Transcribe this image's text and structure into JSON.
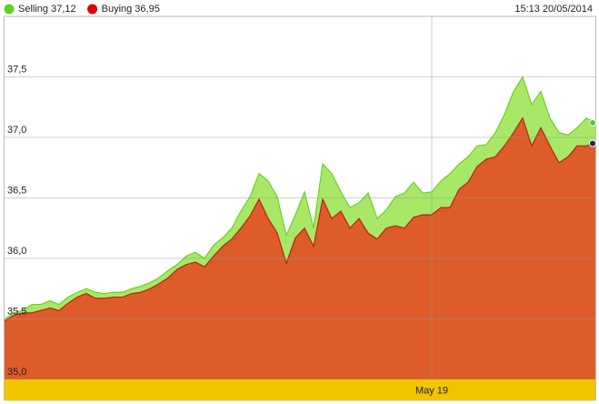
{
  "chart_data": {
    "type": "area",
    "timestamp": "15:13 20/05/2014",
    "categories": [
      null,
      null,
      null,
      null,
      null,
      null,
      null,
      null,
      null,
      null,
      null,
      null,
      null,
      null,
      null,
      null,
      null,
      null,
      null,
      null,
      null,
      null,
      null,
      null,
      null,
      null,
      null,
      null,
      null,
      null,
      null,
      null,
      null,
      null,
      null,
      null,
      null,
      null,
      null,
      null,
      null,
      null,
      null,
      null,
      null,
      null,
      null,
      "May 19",
      null,
      null,
      null,
      null,
      null,
      null,
      null,
      null,
      null,
      null,
      null,
      null,
      null,
      null,
      null,
      null,
      null,
      null
    ],
    "series": [
      {
        "name": "Selling 37,12",
        "color": "#a8e866",
        "line_color": "#6ccf2a",
        "legend_color": "#5ed21c",
        "values": [
          35.5,
          35.55,
          35.57,
          35.62,
          35.62,
          35.65,
          35.62,
          35.68,
          35.72,
          35.75,
          35.72,
          35.71,
          35.72,
          35.72,
          35.75,
          35.77,
          35.8,
          35.84,
          35.9,
          35.95,
          36.02,
          36.05,
          36.0,
          36.11,
          36.17,
          36.25,
          36.39,
          36.51,
          36.7,
          36.64,
          36.51,
          36.19,
          36.36,
          36.55,
          36.25,
          36.78,
          36.7,
          36.55,
          36.42,
          36.46,
          36.54,
          36.33,
          36.4,
          36.51,
          36.54,
          36.63,
          36.54,
          36.55,
          36.64,
          36.7,
          36.78,
          36.84,
          36.93,
          36.94,
          37.04,
          37.19,
          37.38,
          37.5,
          37.27,
          37.38,
          37.16,
          37.04,
          37.02,
          37.08,
          37.16,
          37.12
        ]
      },
      {
        "name": "Buying 36,95",
        "color": "#dd5c2a",
        "line_color": "#b02a10",
        "legend_color": "#e00000",
        "values": [
          35.48,
          35.53,
          35.55,
          35.55,
          35.57,
          35.59,
          35.57,
          35.63,
          35.68,
          35.71,
          35.67,
          35.67,
          35.68,
          35.68,
          35.71,
          35.72,
          35.75,
          35.79,
          35.84,
          35.91,
          35.95,
          35.97,
          35.93,
          36.02,
          36.1,
          36.16,
          36.25,
          36.35,
          36.49,
          36.33,
          36.21,
          35.96,
          36.17,
          36.25,
          36.1,
          36.49,
          36.33,
          36.39,
          36.25,
          36.33,
          36.21,
          36.16,
          36.25,
          36.27,
          36.25,
          36.34,
          36.36,
          36.36,
          36.42,
          36.42,
          36.57,
          36.63,
          36.76,
          36.82,
          36.84,
          36.93,
          37.04,
          37.16,
          36.93,
          37.08,
          36.93,
          36.79,
          36.84,
          36.93,
          36.93,
          36.95
        ]
      }
    ],
    "ylim": [
      35,
      38
    ],
    "yticks": [
      {
        "value": 35,
        "label": "35,0"
      },
      {
        "value": 35.5,
        "label": "35,5"
      },
      {
        "value": 36,
        "label": "36,0"
      },
      {
        "value": 36.5,
        "label": "36,5"
      },
      {
        "value": 37,
        "label": "37,0"
      },
      {
        "value": 37.5,
        "label": "37,5"
      }
    ],
    "grid": true,
    "band_color": "#f2c400"
  }
}
